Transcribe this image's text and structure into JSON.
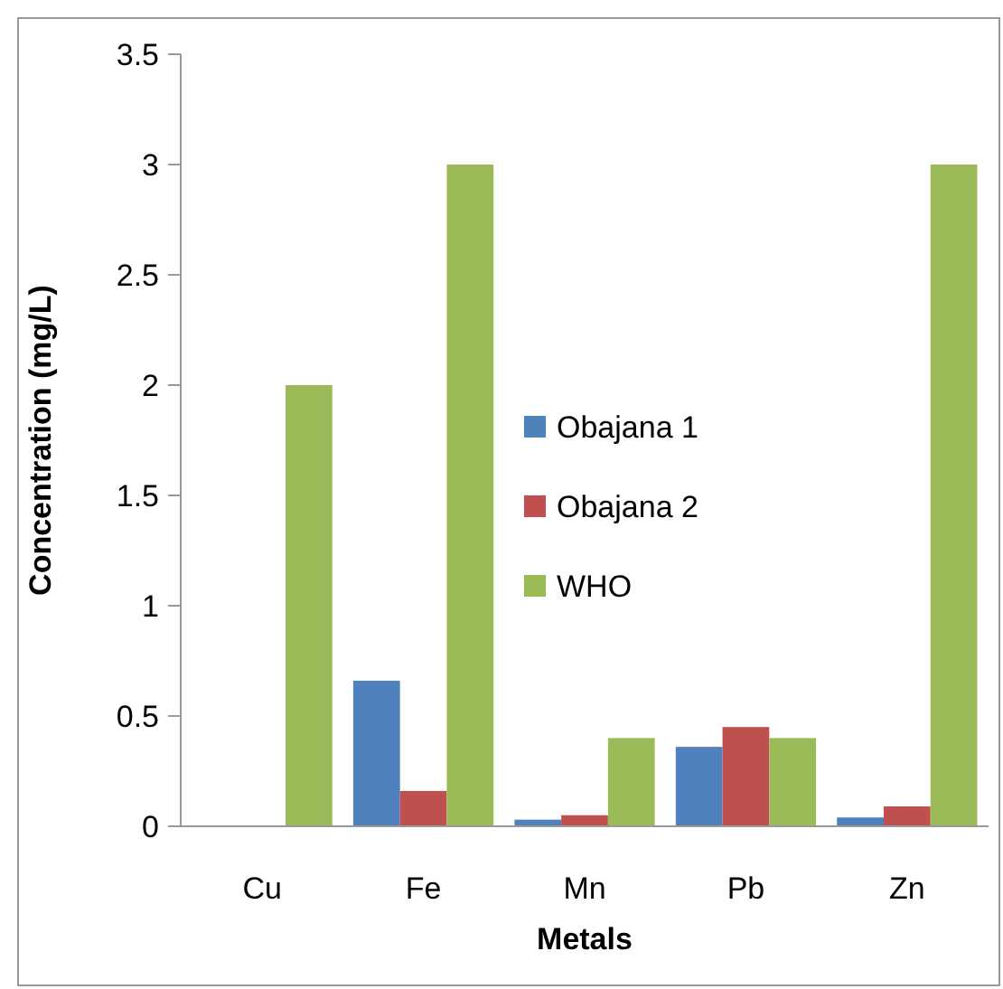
{
  "chart_data": {
    "type": "bar",
    "xlabel": "Metals",
    "ylabel": "Concentration (mg/L)",
    "categories": [
      "Cu",
      "Fe",
      "Mn",
      "Pb",
      "Zn"
    ],
    "series": [
      {
        "name": "Obajana 1",
        "color": "#4f81bd",
        "values": [
          0,
          0.66,
          0.03,
          0.36,
          0.04
        ]
      },
      {
        "name": "Obajana 2",
        "color": "#c0504d",
        "values": [
          0,
          0.16,
          0.05,
          0.45,
          0.09
        ]
      },
      {
        "name": "WHO",
        "color": "#9bbb59",
        "values": [
          2,
          3,
          0.4,
          0.4,
          3
        ]
      }
    ],
    "ylim": [
      0,
      3.5
    ],
    "yticks": [
      0,
      {
        "value": 0.5,
        "label": "0.5"
      },
      1,
      {
        "value": 1.5,
        "label": "1.5"
      },
      2,
      {
        "value": 2.5,
        "label": "2.5"
      },
      3,
      {
        "value": 3.5,
        "label": "3.5"
      }
    ],
    "grid": false,
    "legend": "center"
  }
}
